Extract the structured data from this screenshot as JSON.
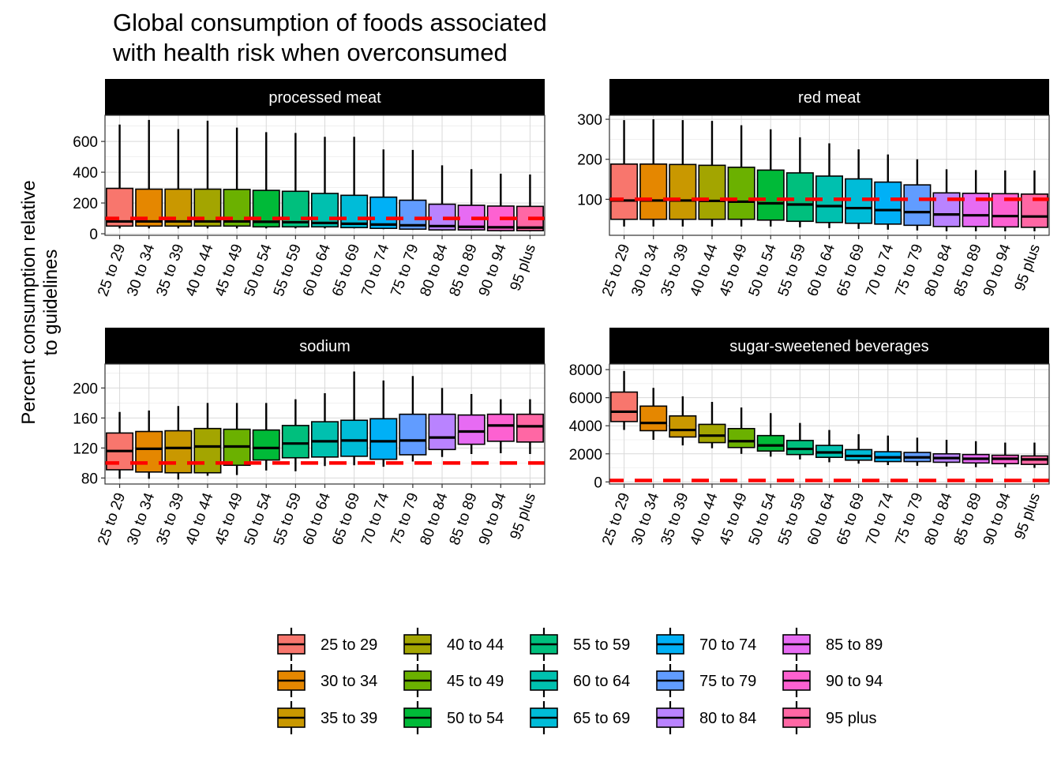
{
  "chart_data": {
    "type": "box",
    "title": [
      "Global consumption of foods associated",
      "with health risk when overconsumed"
    ],
    "ylabel": [
      "Percent consumption relative",
      "to guidelines"
    ],
    "xlabel": "",
    "guideline_value": 100,
    "categories": [
      "25 to 29",
      "30 to 34",
      "35 to 39",
      "40 to 44",
      "45 to 49",
      "50 to 54",
      "55 to 59",
      "60 to 64",
      "65 to 69",
      "70 to 74",
      "75 to 79",
      "80 to 84",
      "85 to 89",
      "90 to 94",
      "95 plus"
    ],
    "colors": [
      "#F8766D",
      "#E58700",
      "#C99800",
      "#A3A500",
      "#6BB100",
      "#00BA38",
      "#00BF7D",
      "#00C0AF",
      "#00BCD8",
      "#00B0F6",
      "#619CFF",
      "#B983FF",
      "#E76BF3",
      "#FD61D1",
      "#FF67A4"
    ],
    "facets": [
      {
        "name": "processed meat",
        "ylim": [
          -10,
          770
        ],
        "yticks": [
          0,
          200,
          400,
          600
        ],
        "boxes": [
          {
            "min": 35,
            "q1": 50,
            "median": 80,
            "q3": 295,
            "max": 710
          },
          {
            "min": 35,
            "q1": 50,
            "median": 80,
            "q3": 290,
            "max": 740
          },
          {
            "min": 35,
            "q1": 50,
            "median": 80,
            "q3": 290,
            "max": 680
          },
          {
            "min": 35,
            "q1": 50,
            "median": 80,
            "q3": 290,
            "max": 735
          },
          {
            "min": 35,
            "q1": 50,
            "median": 80,
            "q3": 288,
            "max": 690
          },
          {
            "min": 35,
            "q1": 45,
            "median": 78,
            "q3": 282,
            "max": 660
          },
          {
            "min": 35,
            "q1": 45,
            "median": 75,
            "q3": 276,
            "max": 655
          },
          {
            "min": 35,
            "q1": 45,
            "median": 70,
            "q3": 262,
            "max": 630
          },
          {
            "min": 35,
            "q1": 40,
            "median": 65,
            "q3": 250,
            "max": 630
          },
          {
            "min": 30,
            "q1": 35,
            "median": 60,
            "q3": 238,
            "max": 548
          },
          {
            "min": 25,
            "q1": 30,
            "median": 55,
            "q3": 218,
            "max": 545
          },
          {
            "min": 20,
            "q1": 25,
            "median": 50,
            "q3": 192,
            "max": 445
          },
          {
            "min": 20,
            "q1": 25,
            "median": 45,
            "q3": 185,
            "max": 420
          },
          {
            "min": 15,
            "q1": 20,
            "median": 42,
            "q3": 180,
            "max": 390
          },
          {
            "min": 15,
            "q1": 20,
            "median": 40,
            "q3": 178,
            "max": 385
          }
        ]
      },
      {
        "name": "red meat",
        "ylim": [
          10,
          310
        ],
        "yticks": [
          100,
          200,
          300
        ],
        "boxes": [
          {
            "min": 32,
            "q1": 50,
            "median": 97,
            "q3": 188,
            "max": 298
          },
          {
            "min": 32,
            "q1": 50,
            "median": 97,
            "q3": 188,
            "max": 300
          },
          {
            "min": 32,
            "q1": 50,
            "median": 97,
            "q3": 187,
            "max": 298
          },
          {
            "min": 32,
            "q1": 50,
            "median": 96,
            "q3": 185,
            "max": 296
          },
          {
            "min": 32,
            "q1": 50,
            "median": 94,
            "q3": 180,
            "max": 285
          },
          {
            "min": 32,
            "q1": 48,
            "median": 90,
            "q3": 173,
            "max": 275
          },
          {
            "min": 30,
            "q1": 45,
            "median": 87,
            "q3": 166,
            "max": 255
          },
          {
            "min": 28,
            "q1": 42,
            "median": 83,
            "q3": 158,
            "max": 240
          },
          {
            "min": 26,
            "q1": 40,
            "median": 78,
            "q3": 151,
            "max": 225
          },
          {
            "min": 24,
            "q1": 38,
            "median": 73,
            "q3": 143,
            "max": 212
          },
          {
            "min": 22,
            "q1": 35,
            "median": 68,
            "q3": 136,
            "max": 200
          },
          {
            "min": 20,
            "q1": 32,
            "median": 62,
            "q3": 116,
            "max": 175
          },
          {
            "min": 20,
            "q1": 32,
            "median": 60,
            "q3": 115,
            "max": 173
          },
          {
            "min": 20,
            "q1": 31,
            "median": 58,
            "q3": 114,
            "max": 172
          },
          {
            "min": 20,
            "q1": 30,
            "median": 57,
            "q3": 113,
            "max": 172
          }
        ]
      },
      {
        "name": "sodium",
        "ylim": [
          72,
          232
        ],
        "yticks": [
          80,
          120,
          160,
          200
        ],
        "boxes": [
          {
            "min": 79,
            "q1": 91,
            "median": 116,
            "q3": 140,
            "max": 168
          },
          {
            "min": 79,
            "q1": 88,
            "median": 119,
            "q3": 142,
            "max": 170
          },
          {
            "min": 78,
            "q1": 87,
            "median": 120,
            "q3": 143,
            "max": 176
          },
          {
            "min": 83,
            "q1": 87,
            "median": 122,
            "q3": 146,
            "max": 180
          },
          {
            "min": 84,
            "q1": 97,
            "median": 122,
            "q3": 145,
            "max": 180
          },
          {
            "min": 90,
            "q1": 104,
            "median": 120,
            "q3": 144,
            "max": 180
          },
          {
            "min": 89,
            "q1": 107,
            "median": 126,
            "q3": 150,
            "max": 185
          },
          {
            "min": 96,
            "q1": 108,
            "median": 129,
            "q3": 155,
            "max": 193
          },
          {
            "min": 97,
            "q1": 109,
            "median": 130,
            "q3": 157,
            "max": 222
          },
          {
            "min": 95,
            "q1": 105,
            "median": 129,
            "q3": 159,
            "max": 210
          },
          {
            "min": 102,
            "q1": 111,
            "median": 130,
            "q3": 165,
            "max": 216
          },
          {
            "min": 108,
            "q1": 118,
            "median": 134,
            "q3": 165,
            "max": 200
          },
          {
            "min": 112,
            "q1": 125,
            "median": 142,
            "q3": 164,
            "max": 192
          },
          {
            "min": 113,
            "q1": 129,
            "median": 150,
            "q3": 165,
            "max": 185
          },
          {
            "min": 112,
            "q1": 128,
            "median": 149,
            "q3": 165,
            "max": 185
          }
        ]
      },
      {
        "name": "sugar-sweetened beverages",
        "ylim": [
          -150,
          8400
        ],
        "yticks": [
          0,
          2000,
          4000,
          6000,
          8000
        ],
        "boxes": [
          {
            "min": 3700,
            "q1": 4300,
            "median": 5000,
            "q3": 6400,
            "max": 7900
          },
          {
            "min": 3000,
            "q1": 3650,
            "median": 4200,
            "q3": 5400,
            "max": 6700
          },
          {
            "min": 2600,
            "q1": 3200,
            "median": 3700,
            "q3": 4700,
            "max": 6100
          },
          {
            "min": 2400,
            "q1": 2800,
            "median": 3300,
            "q3": 4100,
            "max": 5700
          },
          {
            "min": 2000,
            "q1": 2450,
            "median": 2900,
            "q3": 3800,
            "max": 5300
          },
          {
            "min": 1800,
            "q1": 2200,
            "median": 2600,
            "q3": 3300,
            "max": 4900
          },
          {
            "min": 1600,
            "q1": 1950,
            "median": 2350,
            "q3": 2950,
            "max": 4200
          },
          {
            "min": 1400,
            "q1": 1750,
            "median": 2100,
            "q3": 2600,
            "max": 3700
          },
          {
            "min": 1300,
            "q1": 1550,
            "median": 1850,
            "q3": 2300,
            "max": 3400
          },
          {
            "min": 1200,
            "q1": 1450,
            "median": 1750,
            "q3": 2150,
            "max": 3300
          },
          {
            "min": 1150,
            "q1": 1450,
            "median": 1750,
            "q3": 2100,
            "max": 3150
          },
          {
            "min": 1100,
            "q1": 1400,
            "median": 1700,
            "q3": 2000,
            "max": 3000
          },
          {
            "min": 1050,
            "q1": 1350,
            "median": 1650,
            "q3": 1950,
            "max": 2900
          },
          {
            "min": 1050,
            "q1": 1300,
            "median": 1650,
            "q3": 1900,
            "max": 2800
          },
          {
            "min": 1000,
            "q1": 1250,
            "median": 1600,
            "q3": 1850,
            "max": 2800
          }
        ]
      }
    ],
    "legend": {
      "position": "bottom",
      "ncol": 5,
      "labels": [
        "25 to 29",
        "30 to 34",
        "35 to 39",
        "40 to 44",
        "45 to 49",
        "50 to 54",
        "55 to 59",
        "60 to 64",
        "65 to 69",
        "70 to 74",
        "75 to 79",
        "80 to 84",
        "85 to 89",
        "90 to 94",
        "95 plus"
      ]
    },
    "grid": true
  }
}
